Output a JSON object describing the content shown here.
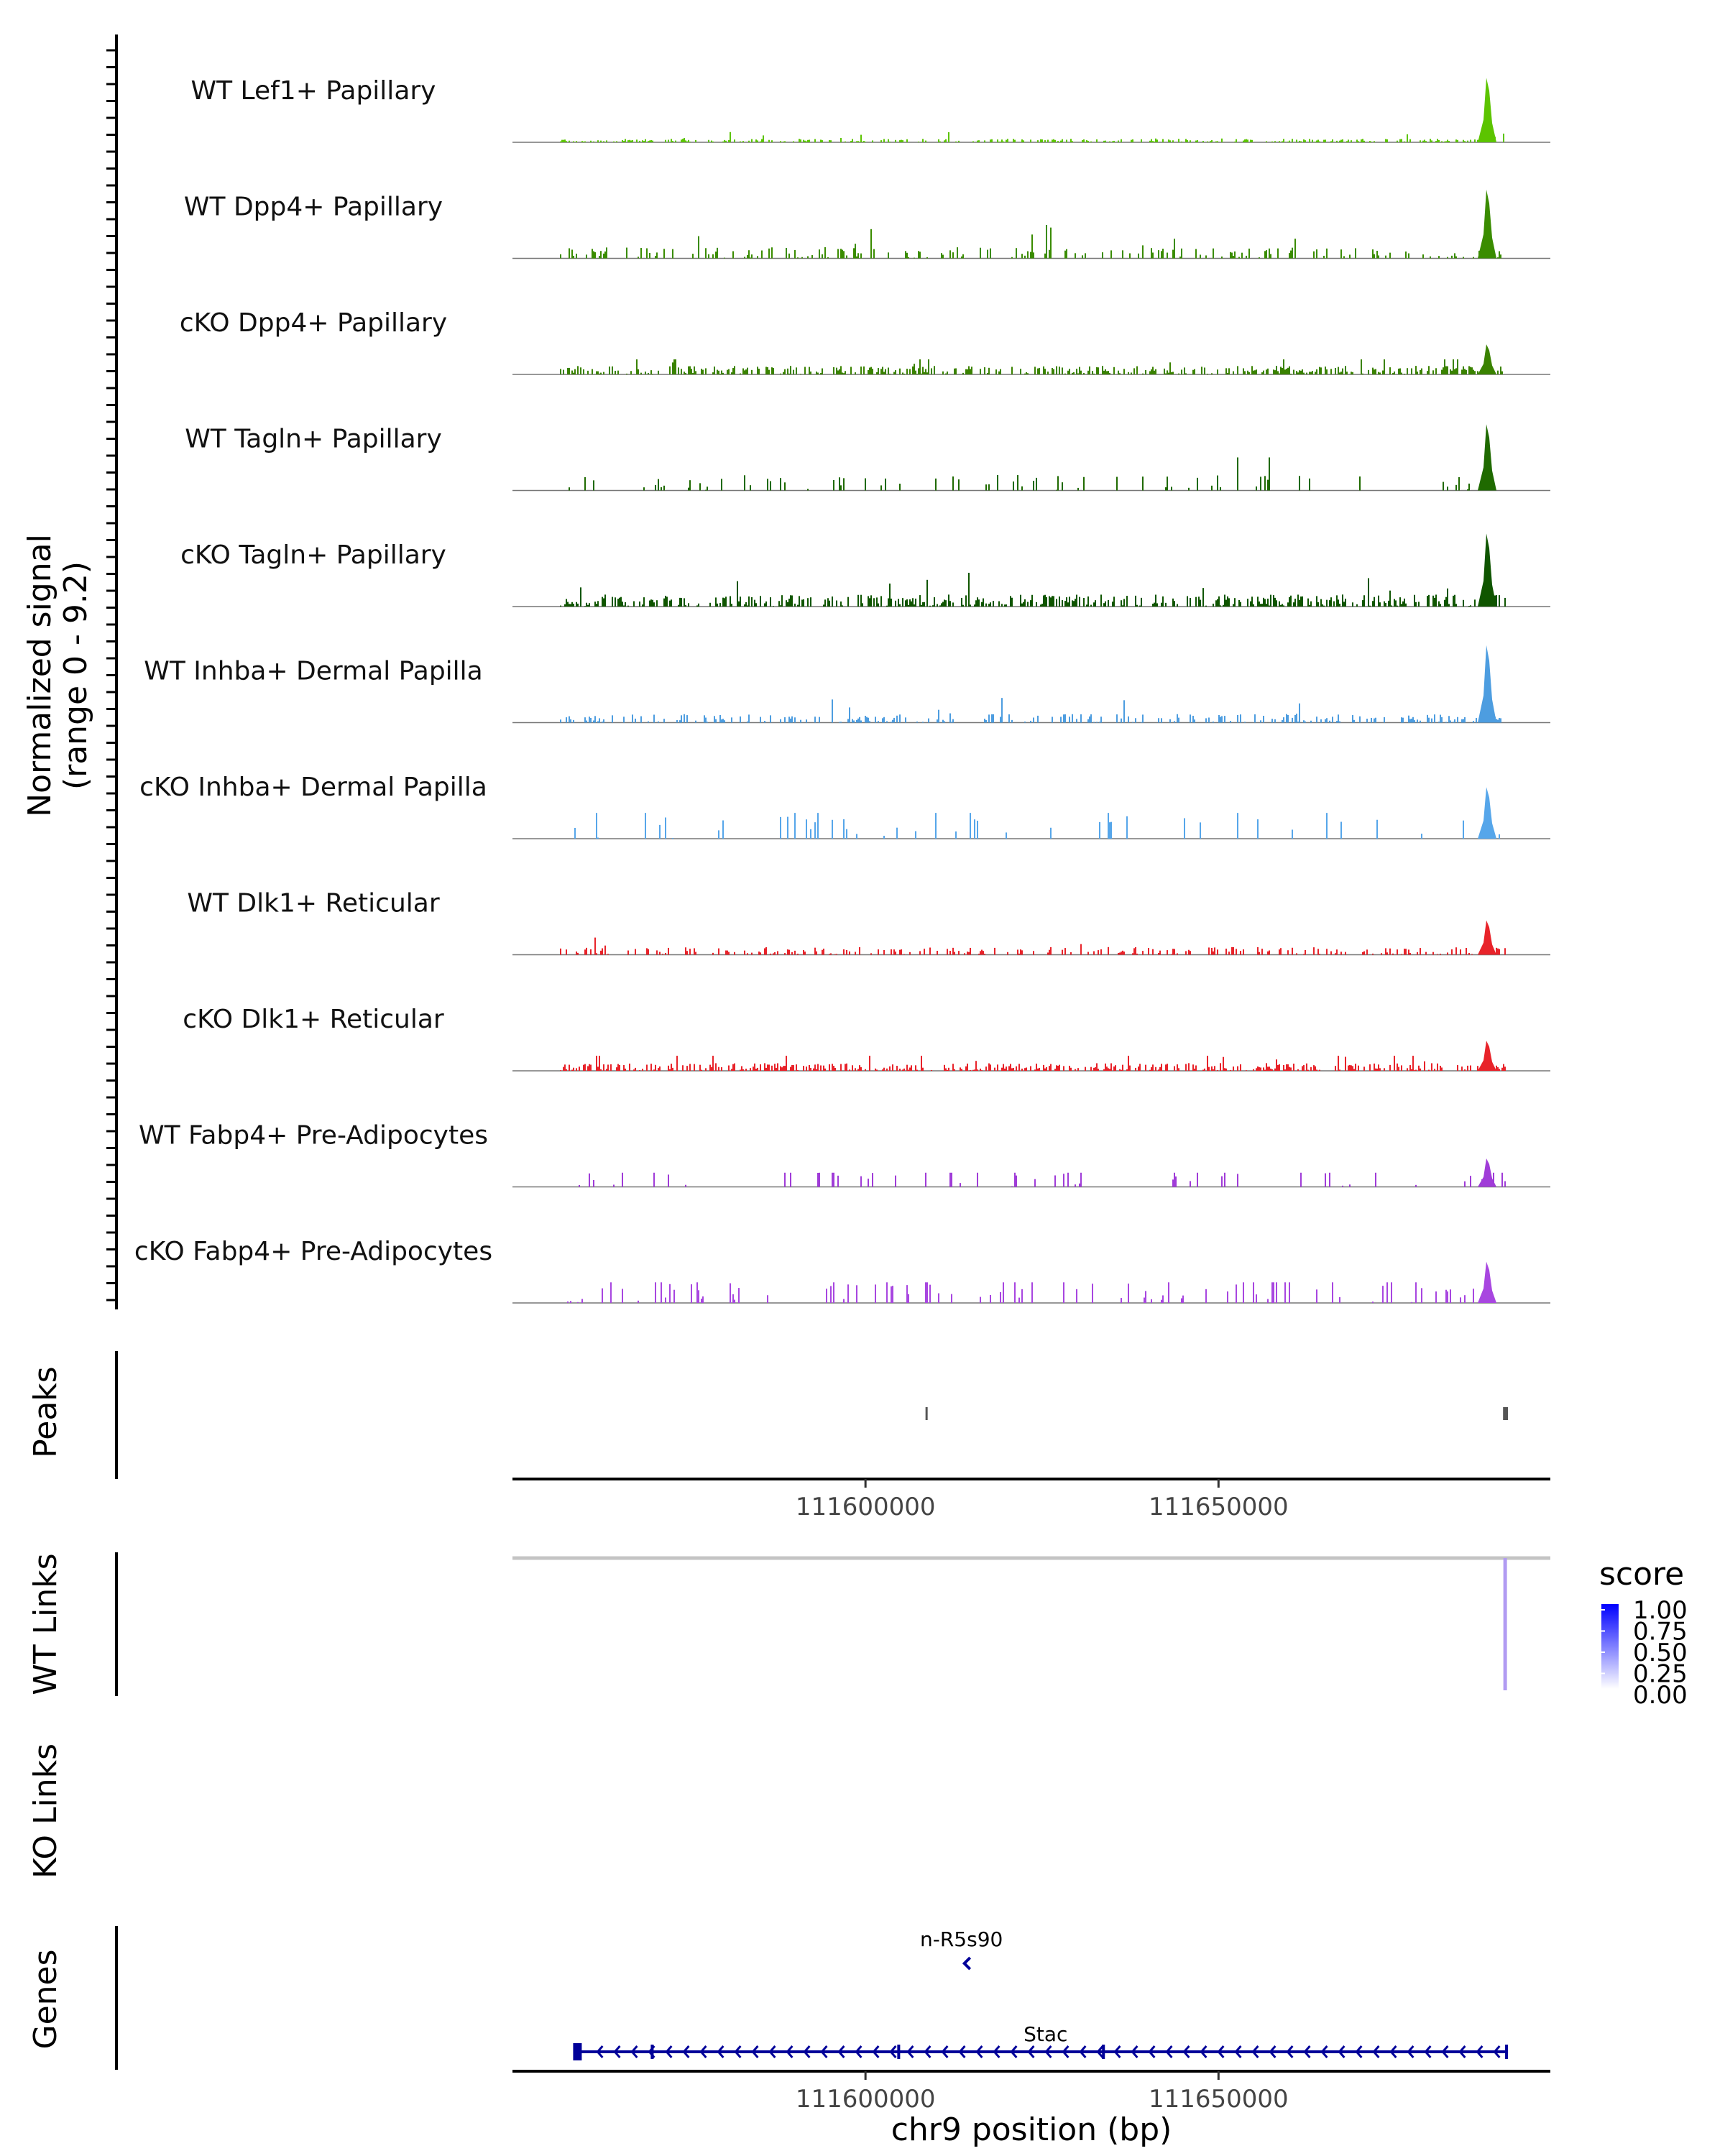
{
  "chart_data": {
    "type": "coverage-tracks",
    "chromosome": "chr9",
    "xlim": [
      111550000,
      111697000
    ],
    "coverage_ylabel_line1": "Normalized signal",
    "coverage_ylabel_line2": "(range 0 - 9.2)",
    "y_range": [
      0,
      9.2
    ],
    "xlabel": "chr9 position (bp)",
    "x_ticks": [
      111600000,
      111650000
    ],
    "x_tick_labels": [
      "111600000",
      "111650000"
    ],
    "tracks": [
      {
        "label": "WT Lef1+ Papillary",
        "color": "#5cc400",
        "seed": 11,
        "density": 0.5,
        "base": 0.4,
        "max_peak": 7.5
      },
      {
        "label": "WT Dpp4+ Papillary",
        "color": "#3a8c00",
        "seed": 23,
        "density": 0.25,
        "base": 1.3,
        "max_peak": 8.0
      },
      {
        "label": "cKO Dpp4+ Papillary",
        "color": "#3a8200",
        "seed": 37,
        "density": 0.55,
        "base": 1.0,
        "max_peak": 3.5
      },
      {
        "label": "WT Tagln+ Papillary",
        "color": "#1f6a00",
        "seed": 41,
        "density": 0.12,
        "base": 1.8,
        "max_peak": 7.7
      },
      {
        "label": "cKO Tagln+ Papillary",
        "color": "#0f5500",
        "seed": 53,
        "density": 0.5,
        "base": 1.4,
        "max_peak": 8.5
      },
      {
        "label": "WT Inhba+ Dermal Papilla",
        "color": "#4d9de0",
        "seed": 67,
        "density": 0.35,
        "base": 1.0,
        "max_peak": 9.0
      },
      {
        "label": "cKO Inhba+ Dermal Papilla",
        "color": "#56a6ea",
        "seed": 71,
        "density": 0.08,
        "base": 3.5,
        "max_peak": 6.0
      },
      {
        "label": "WT Dlk1+ Reticular",
        "color": "#e8232a",
        "seed": 83,
        "density": 0.35,
        "base": 0.9,
        "max_peak": 4.0
      },
      {
        "label": "cKO Dlk1+ Reticular",
        "color": "#e8232a",
        "seed": 97,
        "density": 0.6,
        "base": 0.9,
        "max_peak": 3.5
      },
      {
        "label": "WT Fabp4+ Pre-Adipocytes",
        "color": "#a03cd8",
        "seed": 101,
        "density": 0.1,
        "base": 3.2,
        "max_peak": 3.3
      },
      {
        "label": "cKO Fabp4+ Pre-Adipocytes",
        "color": "#a846e0",
        "seed": 113,
        "density": 0.15,
        "base": 3.4,
        "max_peak": 4.8
      }
    ],
    "peaks_label": "Peaks",
    "peaks": [
      {
        "start": 111608500,
        "end": 111608800
      },
      {
        "start": 111690300,
        "end": 111691000
      }
    ],
    "wt_links_label": "WT Links",
    "ko_links_label": "KO Links",
    "links": [
      {
        "start": 111550000,
        "end": 111697000,
        "score": 0.05
      },
      {
        "start": 111690600,
        "end": 111690600,
        "score": 0.35
      }
    ],
    "legend_title": "score",
    "legend_ticks": [
      "1.00",
      "0.75",
      "0.50",
      "0.25",
      "0.00"
    ],
    "legend_colors": [
      "#ffffff",
      "#0000ff"
    ],
    "genes_label": "Genes",
    "genes": [
      {
        "name": "n-R5s90",
        "start": 111614000,
        "end": 111614600,
        "strand": "-"
      },
      {
        "name": "Stac",
        "start": 111559000,
        "end": 111691000,
        "strand": "-"
      }
    ]
  }
}
